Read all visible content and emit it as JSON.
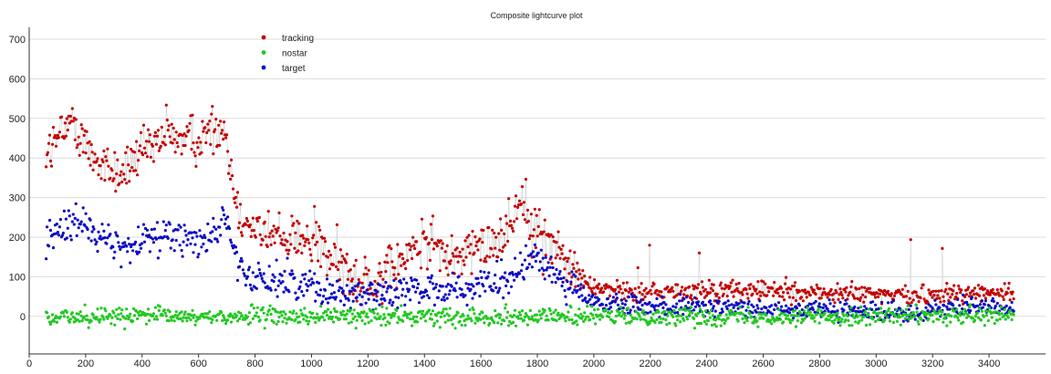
{
  "chart_data": {
    "type": "scatter",
    "title": "Composite lightcurve plot",
    "xlabel": "",
    "ylabel": "",
    "xlim": [
      0,
      3600
    ],
    "ylim": [
      -95,
      730
    ],
    "x_ticks": [
      0,
      200,
      400,
      600,
      800,
      1000,
      1200,
      1400,
      1600,
      1800,
      2000,
      2200,
      2400,
      2600,
      2800,
      3000,
      3200,
      3400
    ],
    "y_ticks": [
      0,
      100,
      200,
      300,
      400,
      500,
      600,
      700
    ],
    "grid": "horizontal",
    "legend_position": "top-left",
    "x_range": [
      60,
      3490
    ],
    "series": [
      {
        "name": "tracking",
        "color": "#c40000",
        "connector_color": "#bdbdbd",
        "mean_profile": [
          [
            60,
            420
          ],
          [
            100,
            440
          ],
          [
            160,
            500
          ],
          [
            200,
            430
          ],
          [
            260,
            380
          ],
          [
            320,
            360
          ],
          [
            380,
            400
          ],
          [
            440,
            420
          ],
          [
            480,
            460
          ],
          [
            540,
            450
          ],
          [
            600,
            450
          ],
          [
            640,
            470
          ],
          [
            690,
            480
          ],
          [
            730,
            300
          ],
          [
            780,
            230
          ],
          [
            860,
            200
          ],
          [
            920,
            210
          ],
          [
            980,
            190
          ],
          [
            1040,
            160
          ],
          [
            1100,
            130
          ],
          [
            1160,
            100
          ],
          [
            1220,
            90
          ],
          [
            1280,
            110
          ],
          [
            1340,
            150
          ],
          [
            1380,
            180
          ],
          [
            1420,
            190
          ],
          [
            1460,
            160
          ],
          [
            1500,
            140
          ],
          [
            1540,
            160
          ],
          [
            1580,
            160
          ],
          [
            1640,
            190
          ],
          [
            1700,
            230
          ],
          [
            1740,
            300
          ],
          [
            1760,
            280
          ],
          [
            1800,
            210
          ],
          [
            1860,
            180
          ],
          [
            1920,
            120
          ],
          [
            1980,
            80
          ],
          [
            2040,
            70
          ],
          [
            2200,
            60
          ],
          [
            2400,
            65
          ],
          [
            2600,
            65
          ],
          [
            2800,
            60
          ],
          [
            3000,
            55
          ],
          [
            3200,
            55
          ],
          [
            3300,
            60
          ],
          [
            3400,
            60
          ],
          [
            3490,
            60
          ]
        ],
        "spread": 45
      },
      {
        "name": "nostar",
        "color": "#22c822",
        "mean_profile": [
          [
            60,
            0
          ],
          [
            3490,
            0
          ]
        ],
        "spread": 16
      },
      {
        "name": "target",
        "color": "#0b0bc4",
        "mean_profile": [
          [
            60,
            185
          ],
          [
            120,
            230
          ],
          [
            180,
            250
          ],
          [
            240,
            200
          ],
          [
            300,
            180
          ],
          [
            360,
            170
          ],
          [
            420,
            200
          ],
          [
            480,
            210
          ],
          [
            540,
            200
          ],
          [
            600,
            190
          ],
          [
            650,
            210
          ],
          [
            700,
            250
          ],
          [
            730,
            140
          ],
          [
            760,
            100
          ],
          [
            820,
            95
          ],
          [
            900,
            90
          ],
          [
            960,
            80
          ],
          [
            1020,
            75
          ],
          [
            1080,
            65
          ],
          [
            1160,
            60
          ],
          [
            1240,
            55
          ],
          [
            1320,
            65
          ],
          [
            1400,
            75
          ],
          [
            1480,
            70
          ],
          [
            1560,
            70
          ],
          [
            1640,
            75
          ],
          [
            1700,
            95
          ],
          [
            1760,
            130
          ],
          [
            1800,
            150
          ],
          [
            1860,
            110
          ],
          [
            1920,
            80
          ],
          [
            1980,
            40
          ],
          [
            2040,
            30
          ],
          [
            2200,
            25
          ],
          [
            2400,
            20
          ],
          [
            2600,
            20
          ],
          [
            2800,
            15
          ],
          [
            3000,
            10
          ],
          [
            3200,
            15
          ],
          [
            3300,
            25
          ],
          [
            3400,
            20
          ],
          [
            3490,
            20
          ]
        ],
        "spread": 30
      }
    ]
  }
}
